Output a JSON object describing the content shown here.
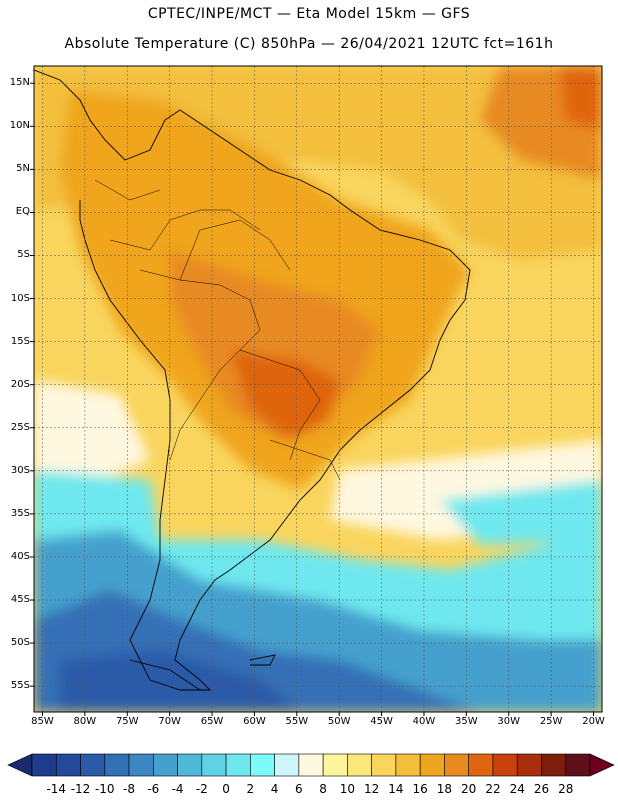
{
  "header": {
    "line1": "CPTEC/INPE/MCT  —   Eta Model 15km  —  GFS",
    "line2": "Absolute Temperature (C) 850hPa  —  26/04/2021 12UTC fct=161h"
  },
  "axes": {
    "lat_labels": [
      "15N",
      "10N",
      "5N",
      "EQ",
      "5S",
      "10S",
      "15S",
      "20S",
      "25S",
      "30S",
      "35S",
      "40S",
      "45S",
      "50S",
      "55S"
    ],
    "lat_values": [
      15,
      10,
      5,
      0,
      -5,
      -10,
      -15,
      -20,
      -25,
      -30,
      -35,
      -40,
      -45,
      -50,
      -55
    ],
    "lon_labels": [
      "85W",
      "80W",
      "75W",
      "70W",
      "65W",
      "60W",
      "55W",
      "50W",
      "45W",
      "40W",
      "35W",
      "30W",
      "25W",
      "20W"
    ],
    "lon_values": [
      -85,
      -80,
      -75,
      -70,
      -65,
      -60,
      -55,
      -50,
      -45,
      -40,
      -35,
      -30,
      -25,
      -20
    ],
    "lat_range": [
      -58,
      17
    ],
    "lon_range": [
      -86,
      -19
    ]
  },
  "colorbar": {
    "labels": [
      "-14",
      "-12",
      "-10",
      "-8",
      "-6",
      "-4",
      "-2",
      "0",
      "2",
      "4",
      "6",
      "8",
      "10",
      "12",
      "14",
      "16",
      "18",
      "20",
      "22",
      "24",
      "26",
      "28"
    ],
    "colors": [
      "#1e3c8c",
      "#24499b",
      "#2b5aa8",
      "#3470b6",
      "#3c86c2",
      "#45a0cd",
      "#4fbad8",
      "#5fd2e4",
      "#6ee8ee",
      "#7dfafa",
      "#cdf5fa",
      "#fff8e0",
      "#fdf59b",
      "#fbe87a",
      "#f9d55e",
      "#f3bf3c",
      "#f0a51f",
      "#e88a20",
      "#df6511",
      "#c9420e",
      "#a82e0c",
      "#7d1d0c",
      "#5e0f1a"
    ],
    "under_color": "#1a2a6c",
    "over_color": "#6a001e"
  },
  "map_data": {
    "description_colors": {
      "ocean_south_deep": "#3470b6",
      "ocean_south_mid": "#45a0cd",
      "ocean_cyan": "#6ee8ee",
      "warm_yellow": "#f9d55e",
      "warm_orange": "#f0a51f",
      "hot_orange": "#e88a20",
      "hot_red": "#df6511"
    }
  }
}
